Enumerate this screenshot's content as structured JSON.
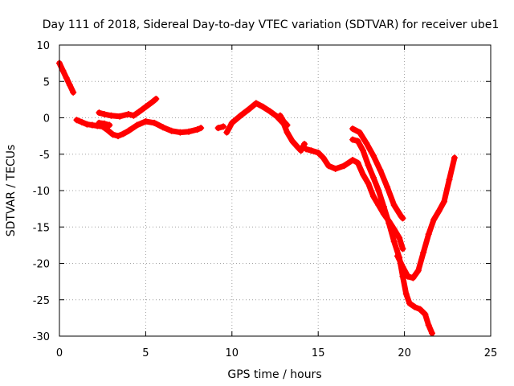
{
  "chart_data": {
    "type": "scatter",
    "title": "Day 111 of 2018, Sidereal Day-to-day VTEC variation (SDTVAR) for receiver ube1",
    "xlabel": "GPS time / hours",
    "ylabel": "SDTVAR / TECUs",
    "xlim": [
      0,
      25
    ],
    "ylim": [
      -30,
      10
    ],
    "xticks": [
      "0",
      "5",
      "10",
      "15",
      "20",
      "25"
    ],
    "yticks": [
      "10",
      "5",
      "0",
      "-5",
      "-10",
      "-15",
      "-20",
      "-25",
      "-30"
    ],
    "grid": true,
    "marker": "+",
    "color": "#ff0000",
    "series": [
      {
        "x": [
          0.0,
          0.2,
          0.4,
          0.6,
          0.8
        ],
        "y": [
          7.5,
          6.5,
          5.5,
          4.5,
          3.5
        ]
      },
      {
        "x": [
          1.0,
          1.3,
          1.6,
          1.9,
          2.2,
          2.5,
          2.8,
          3.1,
          3.4,
          3.7,
          4.0,
          4.5,
          5.0,
          5.5,
          6.0,
          6.5,
          7.0,
          7.5,
          8.0,
          8.2
        ],
        "y": [
          -0.3,
          -0.6,
          -0.9,
          -1.0,
          -1.1,
          -1.2,
          -1.7,
          -2.3,
          -2.5,
          -2.2,
          -1.8,
          -1.0,
          -0.5,
          -0.7,
          -1.3,
          -1.8,
          -2.0,
          -1.9,
          -1.6,
          -1.4
        ]
      },
      {
        "x": [
          2.3,
          2.6,
          3.0,
          3.5,
          4.0,
          4.3,
          4.6,
          5.0,
          5.4,
          5.6
        ],
        "y": [
          0.7,
          0.5,
          0.3,
          0.2,
          0.5,
          0.3,
          0.8,
          1.5,
          2.2,
          2.6
        ]
      },
      {
        "x": [
          2.3,
          2.6,
          2.9
        ],
        "y": [
          -0.7,
          -0.8,
          -1.0
        ]
      },
      {
        "x": [
          9.2,
          9.5
        ],
        "y": [
          -1.4,
          -1.2
        ]
      },
      {
        "x": [
          9.7,
          10.0,
          10.5,
          11.0,
          11.4,
          11.8,
          12.2,
          12.6,
          13.0,
          13.2,
          13.5,
          13.8,
          14.0,
          14.2
        ],
        "y": [
          -2.0,
          -0.7,
          0.3,
          1.2,
          2.0,
          1.5,
          0.9,
          0.2,
          -0.8,
          -2.0,
          -3.2,
          -4.0,
          -4.5,
          -3.6
        ]
      },
      {
        "x": [
          12.8,
          13.0,
          13.2
        ],
        "y": [
          0.3,
          -0.5,
          -1.0
        ]
      },
      {
        "x": [
          14.3,
          14.6,
          15.0,
          15.3,
          15.6,
          16.0,
          16.5,
          17.0,
          17.3,
          17.6,
          17.9,
          18.2,
          18.5,
          18.8,
          19.1,
          19.4,
          19.7,
          19.9
        ],
        "y": [
          -4.3,
          -4.5,
          -4.8,
          -5.5,
          -6.6,
          -7.0,
          -6.6,
          -5.8,
          -6.2,
          -7.8,
          -9.0,
          -10.8,
          -12.0,
          -13.2,
          -14.2,
          -15.3,
          -16.5,
          -18.0
        ]
      },
      {
        "x": [
          17.0,
          17.3,
          17.6,
          17.9,
          18.2,
          18.5,
          18.8,
          19.1,
          19.4,
          19.7,
          19.9,
          20.1,
          20.3,
          20.6,
          20.9,
          21.2,
          21.4,
          21.6
        ],
        "y": [
          -3.0,
          -3.2,
          -4.5,
          -6.5,
          -8.2,
          -10.0,
          -12.2,
          -14.5,
          -17.0,
          -19.2,
          -21.8,
          -24.2,
          -25.5,
          -26.0,
          -26.3,
          -27.0,
          -28.5,
          -29.6
        ]
      },
      {
        "x": [
          17.0,
          17.4,
          17.8,
          18.2,
          18.6,
          19.0,
          19.4,
          19.8,
          19.9
        ],
        "y": [
          -1.5,
          -2.0,
          -3.5,
          -5.2,
          -7.2,
          -9.5,
          -12.0,
          -13.5,
          -13.8
        ]
      },
      {
        "x": [
          19.6,
          19.9,
          20.2,
          20.5,
          20.8,
          21.1,
          21.4,
          21.7,
          22.0,
          22.3,
          22.6,
          22.9
        ],
        "y": [
          -19.0,
          -20.5,
          -21.8,
          -22.0,
          -21.0,
          -18.5,
          -16.0,
          -14.0,
          -12.8,
          -11.5,
          -8.5,
          -5.5
        ]
      }
    ]
  }
}
